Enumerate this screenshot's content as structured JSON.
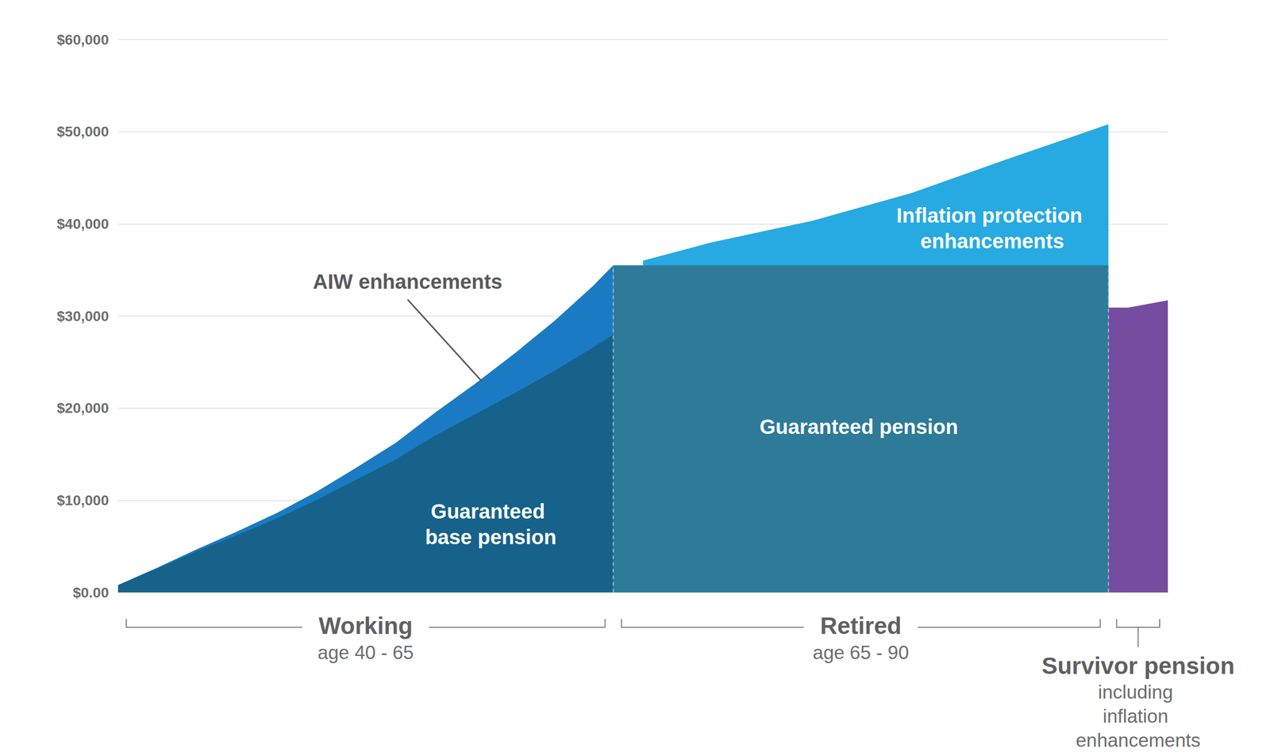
{
  "chart_data": {
    "type": "area",
    "stacked": true,
    "grid": true,
    "tick_labels": "y",
    "xlim": [
      40,
      93
    ],
    "ylim": [
      0,
      60000
    ],
    "yticks": [
      {
        "value": 0,
        "label": "$0.00"
      },
      {
        "value": 10000,
        "label": "$10,000"
      },
      {
        "value": 20000,
        "label": "$20,000"
      },
      {
        "value": 30000,
        "label": "$30,000"
      },
      {
        "value": 40000,
        "label": "$40,000"
      },
      {
        "value": 50000,
        "label": "$50,000"
      },
      {
        "value": 60000,
        "label": "$60,000"
      }
    ],
    "series": [
      {
        "name": "Guaranteed base pension",
        "color": "#16628a",
        "x": [
          40,
          42,
          44,
          46,
          48,
          50,
          52,
          54,
          56,
          58,
          60,
          62,
          64,
          65
        ],
        "values": [
          800,
          2600,
          4500,
          6200,
          8000,
          10000,
          12200,
          14400,
          17000,
          19300,
          21600,
          24000,
          26600,
          28000
        ]
      },
      {
        "name": "AIW enhancements",
        "color": "#1a7bc4",
        "x": [
          40,
          42,
          44,
          46,
          48,
          50,
          52,
          54,
          56,
          58,
          60,
          62,
          64,
          65
        ],
        "values": [
          0,
          100,
          200,
          400,
          600,
          900,
          1300,
          1800,
          2500,
          3300,
          4300,
          5400,
          6700,
          7500
        ]
      },
      {
        "name": "Guaranteed pension",
        "color": "#2d7a99",
        "x": [
          65,
          66.5,
          70,
          75,
          80,
          85,
          90
        ],
        "values": [
          35500,
          35500,
          35500,
          35500,
          35500,
          35500,
          35500
        ]
      },
      {
        "name": "Inflation protection enhancements",
        "color": "#27aae1",
        "x": [
          65,
          66.5,
          70,
          75,
          80,
          85,
          90
        ],
        "values": [
          null,
          500,
          2500,
          4800,
          7800,
          11600,
          15300
        ]
      },
      {
        "name": "Survivor pension",
        "color": "#754c9f",
        "x": [
          90,
          91,
          93
        ],
        "values": [
          30900,
          30900,
          31700
        ]
      }
    ],
    "periods": [
      {
        "label": "Working",
        "sublabel": "age 40 - 65",
        "series": "Guaranteed base pension"
      },
      {
        "label": "Retired",
        "sublabel": "age 65 - 90",
        "series": "Guaranteed pension"
      },
      {
        "label": "Survivor pension",
        "sublabel": "including inflation enhancements",
        "series": "Survivor pension"
      }
    ]
  }
}
